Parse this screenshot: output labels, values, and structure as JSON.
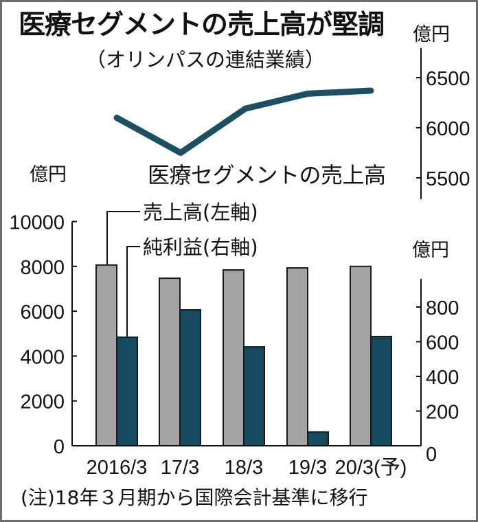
{
  "header": {
    "title": "医療セグメントの売上高が堅調",
    "subtitle": "（オリンパスの連結業績）"
  },
  "footer": {
    "note": "(注)18年３月期から国際会計基準に移行"
  },
  "colors": {
    "sales_bar": "#a3a3a3",
    "profit_bar": "#154a5f",
    "line": "#1d4f62",
    "axis": "#111111",
    "frame": "#6b6b6b"
  },
  "chart_data": [
    {
      "type": "line",
      "title": "医療セグメントの売上高",
      "series_label": "医療セグメントの売上高",
      "unit": "億円",
      "axis_position": "right",
      "categories": [
        "2016/3",
        "17/3",
        "18/3",
        "19/3",
        "20/3(予)"
      ],
      "values": [
        6100,
        5750,
        6190,
        6340,
        6370
      ],
      "yticks": [
        5500,
        6000,
        6500
      ],
      "ylim": [
        5340,
        6640
      ],
      "grid": false
    },
    {
      "type": "bar",
      "title": "オリンパスの連結業績",
      "categories": [
        "2016/3",
        "17/3",
        "18/3",
        "19/3",
        "20/3(予)"
      ],
      "series": [
        {
          "name": "売上高(左軸)",
          "axis": "left",
          "unit": "億円",
          "values": [
            8060,
            7470,
            7840,
            7930,
            8000
          ]
        },
        {
          "name": "純利益(右軸)",
          "axis": "right",
          "unit": "億円",
          "values": [
            626,
            784,
            570,
            79,
            630
          ]
        }
      ],
      "left_axis": {
        "label": "億円",
        "ticks": [
          0,
          2000,
          4000,
          6000,
          8000,
          10000
        ],
        "ylim": [
          0,
          10000
        ]
      },
      "right_axis": {
        "label": "億円",
        "ticks": [
          0,
          200,
          400,
          600,
          800
        ],
        "ylim": [
          0,
          970
        ]
      },
      "legend": [
        "売上高(左軸)",
        "純利益(右軸)"
      ],
      "grid": false
    }
  ],
  "labels": {
    "line_unit": "億円",
    "bar_unit_left": "億円",
    "bar_unit_right": "億円",
    "line_series": "医療セグメントの売上高",
    "legend_sales": "売上高(左軸)",
    "legend_profit": "純利益(右軸)"
  }
}
